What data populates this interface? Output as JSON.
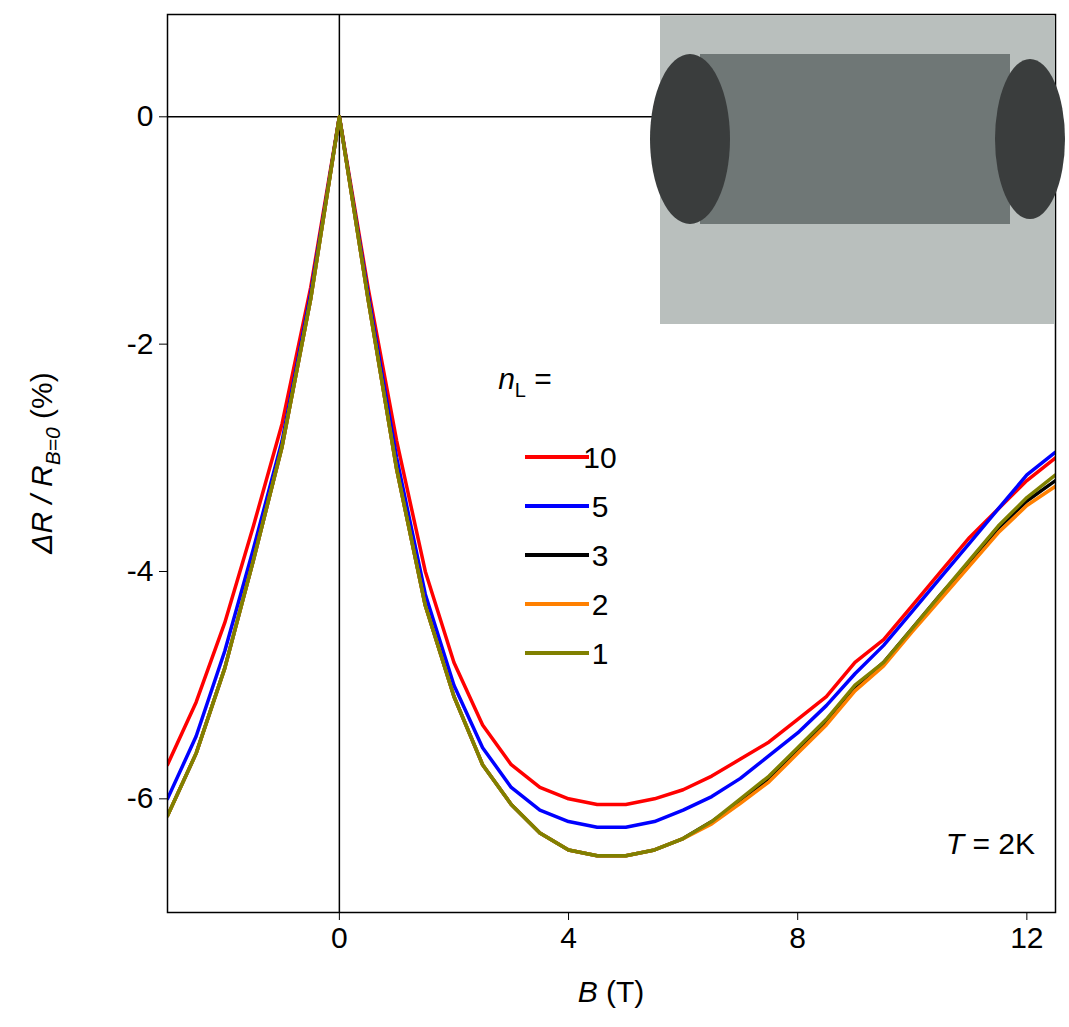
{
  "chart_data": {
    "type": "line",
    "x_label": "B (T)",
    "y_label": {
      "main": "ΔR / R",
      "sub": "B=0",
      "tail": " (%)"
    },
    "legend_title": {
      "symbol": "n",
      "sub": "L",
      "tail": " ="
    },
    "annotation": "T = 2K",
    "legend": "center",
    "xlim": [
      -3,
      12.5
    ],
    "ylim": [
      -7,
      0.9
    ],
    "xticks": [
      0,
      4,
      8,
      12
    ],
    "yticks": [
      0,
      -2,
      -4,
      -6
    ],
    "x": [
      -3,
      -2.5,
      -2,
      -1.5,
      -1,
      -0.5,
      -0.25,
      0,
      0.25,
      0.5,
      1,
      1.5,
      2,
      2.5,
      3,
      3.5,
      4,
      4.5,
      5,
      5.5,
      6,
      6.5,
      7,
      7.5,
      8,
      8.5,
      9,
      9.5,
      10,
      10.5,
      11,
      11.5,
      12,
      12.5
    ],
    "series": [
      {
        "name": "10",
        "color": "#ff0000",
        "values": [
          -5.7,
          -5.15,
          -4.45,
          -3.6,
          -2.7,
          -1.5,
          -0.75,
          0,
          -0.75,
          -1.5,
          -2.85,
          -4.0,
          -4.8,
          -5.35,
          -5.7,
          -5.9,
          -6.0,
          -6.05,
          -6.05,
          -6.0,
          -5.92,
          -5.8,
          -5.65,
          -5.5,
          -5.3,
          -5.1,
          -4.8,
          -4.6,
          -4.3,
          -4.0,
          -3.7,
          -3.45,
          -3.2,
          -3.0
        ]
      },
      {
        "name": "5",
        "color": "#0000ff",
        "values": [
          -6.0,
          -5.45,
          -4.7,
          -3.8,
          -2.85,
          -1.55,
          -0.78,
          0,
          -0.78,
          -1.55,
          -3.0,
          -4.2,
          -5.0,
          -5.55,
          -5.9,
          -6.1,
          -6.2,
          -6.25,
          -6.25,
          -6.2,
          -6.1,
          -5.98,
          -5.82,
          -5.62,
          -5.42,
          -5.18,
          -4.9,
          -4.65,
          -4.35,
          -4.05,
          -3.75,
          -3.45,
          -3.15,
          -2.95
        ]
      },
      {
        "name": "3",
        "color": "#000000",
        "values": [
          -6.15,
          -5.6,
          -4.85,
          -3.9,
          -2.9,
          -1.6,
          -0.8,
          0,
          -0.8,
          -1.6,
          -3.1,
          -4.3,
          -5.1,
          -5.7,
          -6.05,
          -6.3,
          -6.45,
          -6.5,
          -6.5,
          -6.45,
          -6.35,
          -6.2,
          -6.02,
          -5.82,
          -5.58,
          -5.32,
          -5.02,
          -4.8,
          -4.5,
          -4.2,
          -3.92,
          -3.62,
          -3.38,
          -3.2
        ]
      },
      {
        "name": "2",
        "color": "#ff8000",
        "values": [
          -6.15,
          -5.6,
          -4.85,
          -3.9,
          -2.9,
          -1.6,
          -0.8,
          0,
          -0.8,
          -1.6,
          -3.1,
          -4.3,
          -5.1,
          -5.7,
          -6.05,
          -6.3,
          -6.45,
          -6.5,
          -6.5,
          -6.45,
          -6.35,
          -6.22,
          -6.04,
          -5.85,
          -5.6,
          -5.35,
          -5.05,
          -4.83,
          -4.53,
          -4.24,
          -3.95,
          -3.66,
          -3.42,
          -3.25
        ]
      },
      {
        "name": "1",
        "color": "#808000",
        "values": [
          -6.15,
          -5.6,
          -4.85,
          -3.9,
          -2.9,
          -1.6,
          -0.8,
          0,
          -0.8,
          -1.6,
          -3.1,
          -4.3,
          -5.1,
          -5.7,
          -6.05,
          -6.3,
          -6.45,
          -6.5,
          -6.5,
          -6.45,
          -6.35,
          -6.2,
          -6.0,
          -5.8,
          -5.55,
          -5.3,
          -5.0,
          -4.8,
          -4.5,
          -4.2,
          -3.9,
          -3.6,
          -3.35,
          -3.15
        ]
      }
    ]
  }
}
